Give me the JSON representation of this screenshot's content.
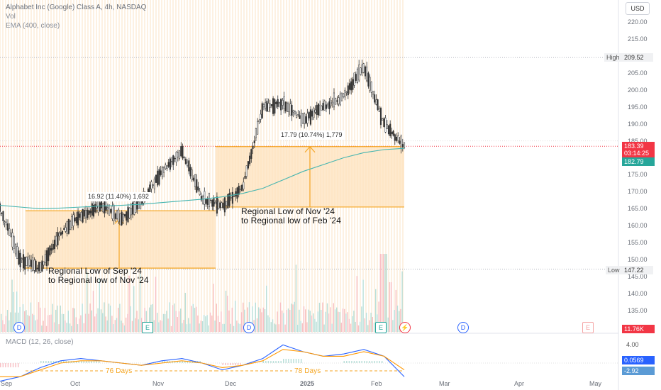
{
  "header": {
    "title": "Alphabet Inc (Google) Class A, 4h, NASDAQ",
    "vol_label": "Vol",
    "ema_label": "EMA (400, close)",
    "currency": "USD"
  },
  "price_axis": {
    "ticks": [
      "220.00",
      "215.00",
      "210.00",
      "205.00",
      "200.00",
      "195.00",
      "190.00",
      "185.00",
      "180.00",
      "175.00",
      "170.00",
      "165.00",
      "160.00",
      "155.00",
      "150.00",
      "145.00",
      "140.00",
      "135.00"
    ],
    "high_label": "High",
    "high_value": "209.52",
    "low_label": "Low",
    "low_value": "147.22",
    "last_price": "183.39",
    "countdown": "03:14:25",
    "ema_value": "182.79",
    "volume_value": "11.76K"
  },
  "macd_axis": {
    "label": "MACD (12, 26, close)",
    "tick": "4.00",
    "macd_value": "0.0569",
    "signal_value": "-2.92"
  },
  "time_axis": [
    "Sep",
    "Oct",
    "Nov",
    "Dec",
    "2025",
    "Feb",
    "Mar",
    "Apr",
    "May"
  ],
  "annotations": {
    "range1_measure": "16.92 (11.40%) 1,692",
    "range2_measure": "17.79 (10.74%) 1,779",
    "range1_line1": "Regional Low of Sep '24",
    "range1_line2": "to Regional low of Nov '24",
    "range2_line1": "Regional Low of Nov '24",
    "range2_line2": "to Regional low of Feb '24",
    "days1": "76 Days",
    "days2": "78 Days"
  },
  "event_markers": [
    {
      "type": "D",
      "label": "D"
    },
    {
      "type": "E",
      "label": "E"
    },
    {
      "type": "D",
      "label": "D"
    },
    {
      "type": "E",
      "label": "E"
    },
    {
      "type": "split",
      "label": "⚡"
    },
    {
      "type": "D",
      "label": "D"
    },
    {
      "type": "E",
      "label": "E"
    }
  ],
  "colors": {
    "up": "#089981",
    "down": "#f23645",
    "candle": "#333333",
    "ema": "#45b5b0",
    "macd": "#2962ff",
    "signal": "#ff9800",
    "range_fill": "#fde8c8",
    "range_line": "#f5a623",
    "price_tag": "#f23645",
    "ema_tag": "#26a69a"
  },
  "chart_data": {
    "type": "line",
    "title": "Alphabet Inc (Google) Class A, 4h, NASDAQ",
    "xlabel": "",
    "ylabel": "",
    "ylim": [
      133,
      223
    ],
    "grid": false,
    "series": [
      {
        "name": "Alphabet Inc (Google) Class A",
        "x": [
          "Sep",
          "Sep",
          "Sep",
          "Oct",
          "Oct",
          "Oct",
          "Oct",
          "Nov",
          "Nov",
          "Nov",
          "Nov",
          "Dec",
          "Dec",
          "Dec",
          "Dec",
          "2025",
          "2025",
          "2025",
          "Feb",
          "Feb",
          "Feb"
        ],
        "values": [
          165,
          150,
          147.5,
          158,
          163,
          166,
          162,
          167,
          176,
          182,
          168,
          166,
          171,
          195,
          196,
          191,
          195,
          198,
          207,
          190,
          183.4
        ]
      },
      {
        "name": "EMA (400, close)",
        "values": [
          166,
          165.5,
          165,
          165.2,
          165.5,
          165.8,
          166,
          166.3,
          166.8,
          167.3,
          167.8,
          168.5,
          169.5,
          171,
          173.5,
          176,
          178,
          180,
          181.5,
          182.4,
          182.79
        ]
      }
    ],
    "high": 209.52,
    "low": 147.22,
    "last": 183.39,
    "ranges": [
      {
        "change": 16.92,
        "percent": 11.4,
        "from": 147.5,
        "to": 164.4,
        "days": 76
      },
      {
        "change": 17.79,
        "percent": 10.74,
        "from": 165.5,
        "to": 183.3,
        "days": 78
      }
    ]
  }
}
